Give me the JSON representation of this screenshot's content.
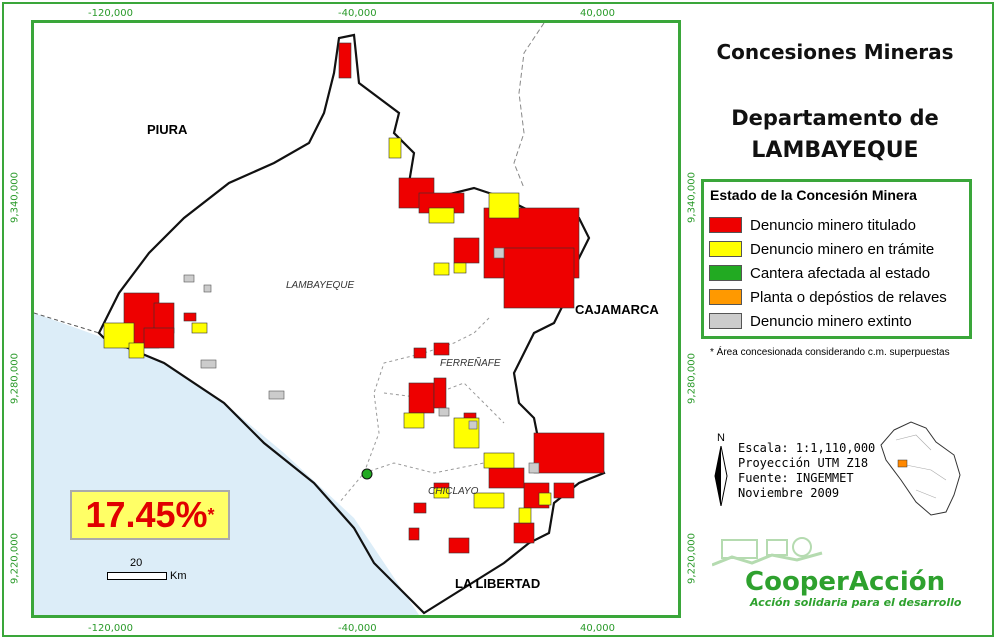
{
  "title": {
    "line1": "Concesiones Mineras",
    "line2": "Departamento de",
    "line3": "LAMBAYEQUE"
  },
  "coords": {
    "top": [
      "-120,000",
      "-40,000",
      "40,000"
    ],
    "bottom": [
      "-120,000",
      "-40,000",
      "40,000"
    ],
    "left": [
      "9,340,000",
      "9,280,000",
      "9,220,000"
    ],
    "right": [
      "9,340,000",
      "9,280,000",
      "9,220,000"
    ]
  },
  "map_labels": {
    "piura": "PIURA",
    "cajamarca": "CAJAMARCA",
    "la_libertad": "LA LIBERTAD",
    "lambayeque": "LAMBAYEQUE",
    "ferrenafe": "FERREÑAFE",
    "chiclayo": "CHICLAYO"
  },
  "legend": {
    "title": "Estado de la Concesión Minera",
    "items": [
      {
        "label": "Denuncio minero titulado",
        "color": "#ee0000"
      },
      {
        "label": "Denuncio minero en trámite",
        "color": "#ffff00"
      },
      {
        "label": "Cantera afectada al estado",
        "color": "#22aa22"
      },
      {
        "label": "Planta o depóstios de relaves",
        "color": "#ff9900"
      },
      {
        "label": "Denuncio minero extinto",
        "color": "#cccccc"
      }
    ]
  },
  "note": "* Área concesionada considerando c.m. superpuestas",
  "meta": {
    "north": "N",
    "scale": "Escala: 1:1,110,000",
    "projection": "Proyección UTM Z18",
    "source": "Fuente: INGEMMET",
    "date": "Noviembre 2009"
  },
  "percentage": {
    "value": "17.45%",
    "marker": "*"
  },
  "scalebar": {
    "value": "20",
    "unit": "Km"
  },
  "brand": {
    "name": "CooperAcción",
    "tagline": "Acción solidaria para el desarrollo"
  },
  "colors": {
    "frame": "#3aa63a",
    "sea": "#dcedf8",
    "titled": "#ee0000",
    "pending": "#ffff00"
  }
}
